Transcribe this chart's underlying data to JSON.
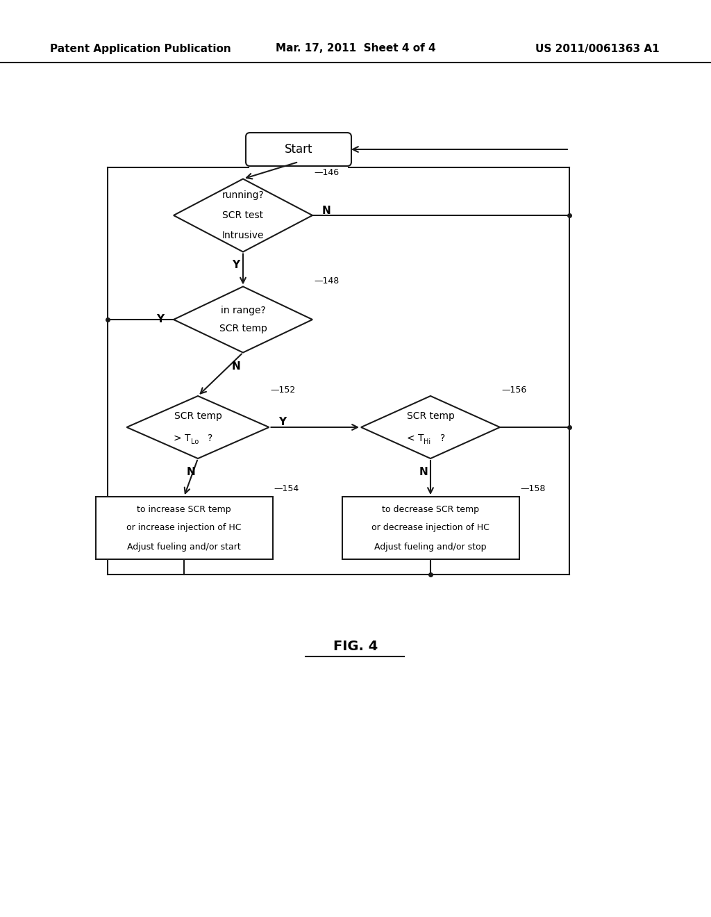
{
  "header_left": "Patent Application Publication",
  "header_center": "Mar. 17, 2011  Sheet 4 of 4",
  "header_right": "US 2011/0061363 A1",
  "figure_label": "FIG. 4",
  "bg_color": "#ffffff",
  "line_color": "#1a1a1a"
}
